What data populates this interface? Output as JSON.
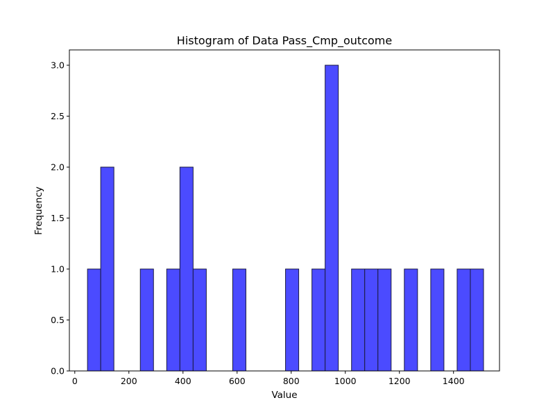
{
  "chart_data": {
    "type": "bar",
    "title": "Histogram of Data Pass_Cmp_outcome",
    "xlabel": "Value",
    "ylabel": "Frequency",
    "xlim": [
      -20,
      1570
    ],
    "ylim": [
      0,
      3.15
    ],
    "xticks": [
      0,
      200,
      400,
      600,
      800,
      1000,
      1200,
      1400
    ],
    "xtick_labels": [
      "0",
      "200",
      "400",
      "600",
      "800",
      "1000",
      "1200",
      "1400"
    ],
    "yticks": [
      0,
      0.5,
      1.0,
      1.5,
      2.0,
      2.5,
      3.0
    ],
    "ytick_labels": [
      "0.0",
      "0.5",
      "1.0",
      "1.5",
      "2.0",
      "2.5",
      "3.0"
    ],
    "bin_width": 48.8,
    "bins": [
      {
        "start": 47.0,
        "count": 1
      },
      {
        "start": 95.8,
        "count": 2
      },
      {
        "start": 242.2,
        "count": 1
      },
      {
        "start": 339.8,
        "count": 1
      },
      {
        "start": 388.6,
        "count": 2
      },
      {
        "start": 437.4,
        "count": 1
      },
      {
        "start": 583.8,
        "count": 1
      },
      {
        "start": 779.0,
        "count": 1
      },
      {
        "start": 876.6,
        "count": 1
      },
      {
        "start": 925.4,
        "count": 3
      },
      {
        "start": 1023.0,
        "count": 1
      },
      {
        "start": 1071.8,
        "count": 1
      },
      {
        "start": 1120.6,
        "count": 1
      },
      {
        "start": 1218.2,
        "count": 1
      },
      {
        "start": 1315.8,
        "count": 1
      },
      {
        "start": 1413.4,
        "count": 1
      },
      {
        "start": 1462.2,
        "count": 1
      }
    ],
    "grid": false,
    "bar_color": "#4b4bff",
    "bar_edge_color": "#1a1a40"
  }
}
